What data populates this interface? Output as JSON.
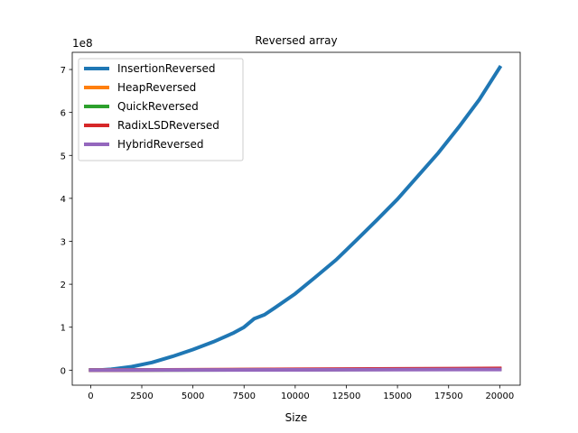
{
  "chart_data": {
    "type": "line",
    "title": "Reversed array",
    "xlabel": "Size",
    "ylabel": "",
    "y_scale_label": "1e8",
    "xlim": [
      -900,
      21000
    ],
    "ylim": [
      -0.35,
      7.4
    ],
    "x_ticks": [
      0,
      2500,
      5000,
      7500,
      10000,
      12500,
      15000,
      17500,
      20000
    ],
    "x_tick_labels": [
      "0",
      "2500",
      "5000",
      "7500",
      "10000",
      "12500",
      "15000",
      "17500",
      "20000"
    ],
    "y_ticks": [
      0,
      1,
      2,
      3,
      4,
      5,
      6,
      7
    ],
    "y_tick_labels": [
      "0",
      "1",
      "2",
      "3",
      "4",
      "5",
      "6",
      "7"
    ],
    "grid": false,
    "legend_position": "top-left",
    "series": [
      {
        "name": "InsertionReversed",
        "color": "#1f77b4",
        "x": [
          0,
          500,
          1000,
          2000,
          3000,
          4000,
          5000,
          6000,
          7000,
          7500,
          8000,
          8500,
          9000,
          10000,
          11000,
          12000,
          13000,
          14000,
          15000,
          16000,
          17000,
          18000,
          19000,
          20000
        ],
        "y": [
          0,
          0.005,
          0.02,
          0.08,
          0.18,
          0.32,
          0.48,
          0.66,
          0.87,
          1.0,
          1.2,
          1.29,
          1.45,
          1.78,
          2.17,
          2.57,
          3.03,
          3.5,
          3.98,
          4.52,
          5.06,
          5.66,
          6.3,
          7.05
        ]
      },
      {
        "name": "HeapReversed",
        "color": "#ff7f0e",
        "x": [
          0,
          5000,
          10000,
          15000,
          20000
        ],
        "y": [
          0,
          0.006,
          0.013,
          0.02,
          0.028
        ]
      },
      {
        "name": "QuickReversed",
        "color": "#2ca02c",
        "x": [
          0,
          5000,
          10000,
          15000,
          20000
        ],
        "y": [
          0,
          0.005,
          0.011,
          0.017,
          0.024
        ]
      },
      {
        "name": "RadixLSDReversed",
        "color": "#d62728",
        "x": [
          0,
          5000,
          10000,
          15000,
          20000
        ],
        "y": [
          0,
          0.01,
          0.02,
          0.03,
          0.04
        ]
      },
      {
        "name": "HybridReversed",
        "color": "#9467bd",
        "x": [
          0,
          5000,
          10000,
          15000,
          20000
        ],
        "y": [
          0,
          0.004,
          0.008,
          0.012,
          0.016
        ]
      }
    ]
  }
}
